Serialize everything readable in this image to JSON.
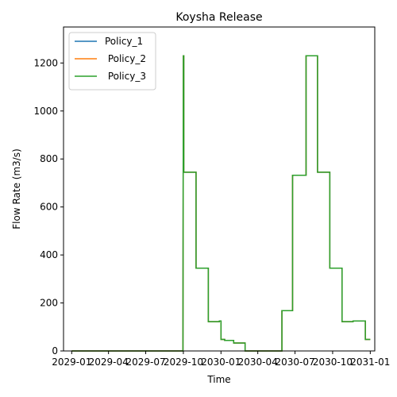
{
  "chart_data": {
    "type": "line",
    "title": "Koysha Release",
    "xlabel": "Time",
    "ylabel": "Flow Rate (m3/s)",
    "x_type": "date",
    "xlim": [
      "2028-12-12",
      "2031-01-12"
    ],
    "ylim": [
      0,
      1350
    ],
    "yticks": [
      0,
      200,
      400,
      600,
      800,
      1000,
      1200
    ],
    "xticks": [
      {
        "date": "2029-01-01",
        "label": "2029-01"
      },
      {
        "date": "2029-04-01",
        "label": "2029-04"
      },
      {
        "date": "2029-07-01",
        "label": "2029-07"
      },
      {
        "date": "2029-10-01",
        "label": "2029-10"
      },
      {
        "date": "2030-01-01",
        "label": "2030-01"
      },
      {
        "date": "2030-04-01",
        "label": "2030-04"
      },
      {
        "date": "2030-07-01",
        "label": "2030-07"
      },
      {
        "date": "2030-10-01",
        "label": "2030-10"
      },
      {
        "date": "2031-01-01",
        "label": "2031-01"
      }
    ],
    "grid": false,
    "legend_position": "top-left",
    "series": [
      {
        "name": "Policy_1",
        "color": "#1f77b4",
        "x": [
          "2029-01-01",
          "2029-09-30",
          "2029-10-01",
          "2029-10-02",
          "2029-10-02",
          "2029-11-01",
          "2029-11-01",
          "2029-12-01",
          "2029-12-01",
          "2029-12-28",
          "2029-12-28",
          "2030-01-01",
          "2030-01-01",
          "2030-01-10",
          "2030-01-10",
          "2030-02-01",
          "2030-02-01",
          "2030-03-01",
          "2030-03-01",
          "2030-04-01",
          "2030-04-01",
          "2030-05-30",
          "2030-05-30",
          "2030-06-25",
          "2030-06-25",
          "2030-07-28",
          "2030-07-28",
          "2030-08-25",
          "2030-08-25",
          "2030-09-24",
          "2030-09-24",
          "2030-10-24",
          "2030-10-24",
          "2030-11-20",
          "2030-11-20",
          "2030-12-20",
          "2030-12-20",
          "2031-01-01"
        ],
        "y": [
          0,
          0,
          1230,
          1230,
          745,
          745,
          345,
          345,
          122,
          122,
          125,
          125,
          48,
          48,
          44,
          44,
          33,
          33,
          0,
          0,
          0,
          0,
          168,
          168,
          732,
          732,
          1230,
          1230,
          745,
          745,
          345,
          345,
          122,
          122,
          125,
          125,
          48,
          48
        ]
      },
      {
        "name": " Policy_2",
        "color": "#ff7f0e",
        "x": [
          "2029-01-01",
          "2029-09-30",
          "2029-10-01",
          "2029-10-02",
          "2029-10-02",
          "2029-11-01",
          "2029-11-01",
          "2029-12-01",
          "2029-12-01",
          "2029-12-28",
          "2029-12-28",
          "2030-01-01",
          "2030-01-01",
          "2030-01-10",
          "2030-01-10",
          "2030-02-01",
          "2030-02-01",
          "2030-03-01",
          "2030-03-01",
          "2030-04-01",
          "2030-04-01",
          "2030-05-30",
          "2030-05-30",
          "2030-06-25",
          "2030-06-25",
          "2030-07-28",
          "2030-07-28",
          "2030-08-25",
          "2030-08-25",
          "2030-09-24",
          "2030-09-24",
          "2030-10-24",
          "2030-10-24",
          "2030-11-20",
          "2030-11-20",
          "2030-12-20",
          "2030-12-20",
          "2031-01-01"
        ],
        "y": [
          0,
          0,
          1230,
          1230,
          745,
          745,
          345,
          345,
          122,
          122,
          125,
          125,
          48,
          48,
          44,
          44,
          33,
          33,
          0,
          0,
          0,
          0,
          168,
          168,
          732,
          732,
          1230,
          1230,
          745,
          745,
          345,
          345,
          122,
          122,
          125,
          125,
          48,
          48
        ]
      },
      {
        "name": " Policy_3",
        "color": "#2ca02c",
        "x": [
          "2029-01-01",
          "2029-09-30",
          "2029-10-01",
          "2029-10-02",
          "2029-10-02",
          "2029-11-01",
          "2029-11-01",
          "2029-12-01",
          "2029-12-01",
          "2029-12-28",
          "2029-12-28",
          "2030-01-01",
          "2030-01-01",
          "2030-01-10",
          "2030-01-10",
          "2030-02-01",
          "2030-02-01",
          "2030-03-01",
          "2030-03-01",
          "2030-04-01",
          "2030-04-01",
          "2030-05-30",
          "2030-05-30",
          "2030-06-25",
          "2030-06-25",
          "2030-07-28",
          "2030-07-28",
          "2030-08-25",
          "2030-08-25",
          "2030-09-24",
          "2030-09-24",
          "2030-10-24",
          "2030-10-24",
          "2030-11-20",
          "2030-11-20",
          "2030-12-20",
          "2030-12-20",
          "2031-01-01"
        ],
        "y": [
          0,
          0,
          1230,
          1230,
          745,
          745,
          345,
          345,
          122,
          122,
          125,
          125,
          48,
          48,
          44,
          44,
          33,
          33,
          0,
          0,
          0,
          0,
          168,
          168,
          732,
          732,
          1230,
          1230,
          745,
          745,
          345,
          345,
          122,
          122,
          125,
          125,
          48,
          48
        ]
      }
    ]
  }
}
